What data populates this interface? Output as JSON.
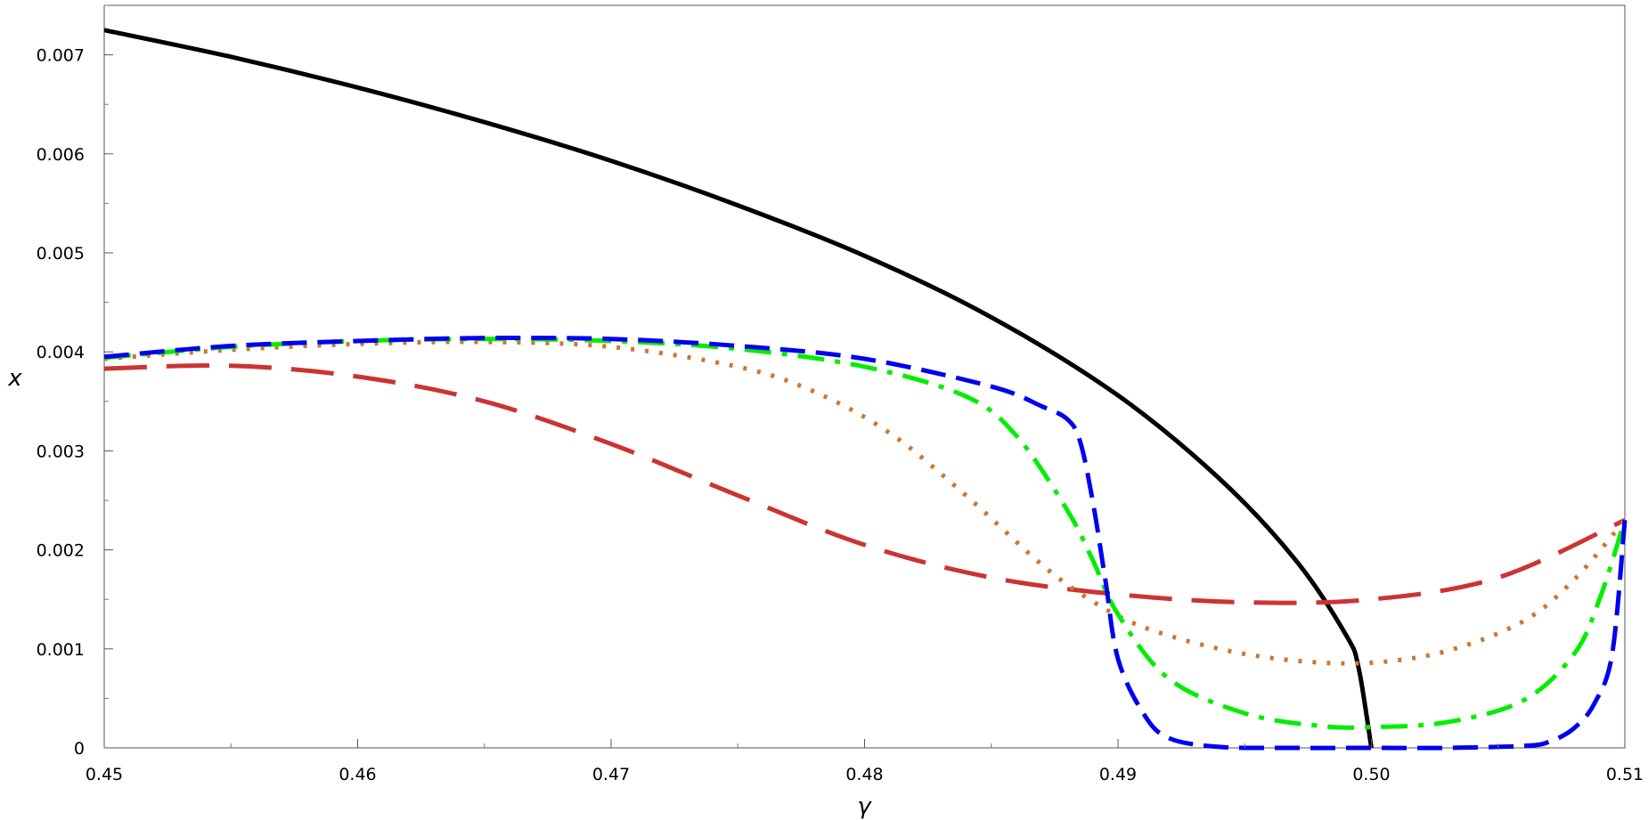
{
  "chart_data": {
    "type": "line",
    "title": "",
    "xlabel": "γ",
    "ylabel": "x",
    "xlim": [
      0.45,
      0.51
    ],
    "ylim": [
      0,
      0.0075
    ],
    "x_ticks": [
      0.45,
      0.46,
      0.47,
      0.48,
      0.49,
      0.5,
      0.51
    ],
    "x_tick_labels": [
      "0.45",
      "0.46",
      "0.47",
      "0.48",
      "0.49",
      "0.50",
      "0.51"
    ],
    "y_ticks": [
      0,
      0.001,
      0.002,
      0.003,
      0.004,
      0.005,
      0.006,
      0.007
    ],
    "y_tick_labels": [
      "0",
      "0.001",
      "0.002",
      "0.003",
      "0.004",
      "0.005",
      "0.006",
      "0.007"
    ],
    "grid": false,
    "legend": "none",
    "series": [
      {
        "color": "#000000",
        "dash": "solid",
        "x": [
          0.45,
          0.455,
          0.46,
          0.465,
          0.47,
          0.475,
          0.48,
          0.485,
          0.49,
          0.494,
          0.497,
          0.499,
          0.4995,
          0.5
        ],
        "y": [
          0.00725,
          0.00698,
          0.00667,
          0.00632,
          0.00593,
          0.00548,
          0.00497,
          0.00435,
          0.00356,
          0.00272,
          0.0019,
          0.00114,
          0.0008,
          0.0
        ]
      },
      {
        "color": "#cc3333",
        "dash": "longdash",
        "x": [
          0.45,
          0.455,
          0.46,
          0.465,
          0.47,
          0.475,
          0.48,
          0.485,
          0.49,
          0.495,
          0.5,
          0.505,
          0.51
        ],
        "y": [
          0.00383,
          0.00386,
          0.00375,
          0.0035,
          0.00307,
          0.00255,
          0.00205,
          0.00172,
          0.00155,
          0.00147,
          0.0015,
          0.00172,
          0.0023
        ]
      },
      {
        "color": "#cc7733",
        "dash": "dot",
        "x": [
          0.45,
          0.455,
          0.46,
          0.465,
          0.47,
          0.475,
          0.478,
          0.481,
          0.484,
          0.487,
          0.489,
          0.491,
          0.494,
          0.497,
          0.5,
          0.503,
          0.506,
          0.508,
          0.51
        ],
        "y": [
          0.00393,
          0.00402,
          0.00408,
          0.0041,
          0.00405,
          0.00385,
          0.0036,
          0.00318,
          0.00255,
          0.00185,
          0.00148,
          0.00122,
          0.001,
          0.00088,
          0.00086,
          0.00098,
          0.00128,
          0.0017,
          0.0023
        ]
      },
      {
        "color": "#00ee00",
        "dash": "dashdot",
        "x": [
          0.45,
          0.455,
          0.46,
          0.465,
          0.47,
          0.475,
          0.48,
          0.484,
          0.486,
          0.488,
          0.489,
          0.49,
          0.492,
          0.495,
          0.498,
          0.5,
          0.503,
          0.506,
          0.508,
          0.509,
          0.51
        ],
        "y": [
          0.00394,
          0.00405,
          0.00411,
          0.00413,
          0.00411,
          0.00403,
          0.00385,
          0.00355,
          0.00315,
          0.0024,
          0.0019,
          0.00135,
          0.0007,
          0.00035,
          0.00022,
          0.00021,
          0.00026,
          0.00048,
          0.00095,
          0.0015,
          0.0023
        ]
      },
      {
        "color": "#0000ee",
        "dash": "dash",
        "x": [
          0.45,
          0.455,
          0.46,
          0.465,
          0.47,
          0.475,
          0.48,
          0.485,
          0.487,
          0.488,
          0.4885,
          0.489,
          0.4895,
          0.49,
          0.491,
          0.492,
          0.494,
          0.497,
          0.5,
          0.503,
          0.506,
          0.507,
          0.508,
          0.5088,
          0.5095,
          0.51
        ],
        "y": [
          0.00395,
          0.00406,
          0.00411,
          0.00414,
          0.00413,
          0.00406,
          0.00393,
          0.00365,
          0.00345,
          0.00332,
          0.0031,
          0.0025,
          0.0017,
          0.0009,
          0.00035,
          0.0001,
          1e-05,
          0.0,
          0.0,
          0.0,
          2e-05,
          6e-05,
          0.0002,
          0.00045,
          0.00095,
          0.0023
        ]
      }
    ]
  }
}
